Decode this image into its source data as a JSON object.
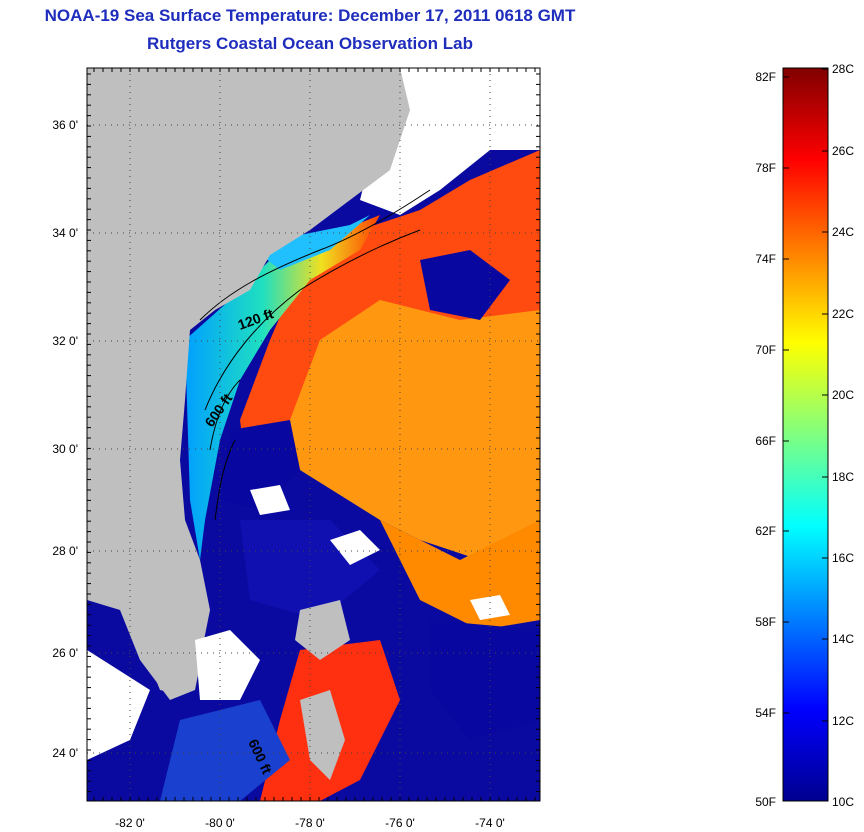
{
  "header": {
    "title": "NOAA-19 Sea Surface Temperature:  December 17, 2011 0618 GMT",
    "subtitle": "Rutgers Coastal Ocean Observation Lab"
  },
  "map": {
    "lat_labels": [
      "36 0'",
      "34 0'",
      "32 0'",
      "30 0'",
      "28 0'",
      "26 0'",
      "24 0'"
    ],
    "lon_labels": [
      "-82 0'",
      "-80 0'",
      "-78 0'",
      "-76 0'",
      "-74 0'"
    ],
    "isobath_labels": [
      "120 ft",
      "600 ft",
      "600 ft"
    ],
    "colors": {
      "land": "#bfbfbf",
      "cloud": "#ffffff",
      "cold": "#00008f",
      "warm": "#ff8c00"
    }
  },
  "colorbar": {
    "fahrenheit_labels": [
      "82F",
      "78F",
      "74F",
      "70F",
      "66F",
      "62F",
      "58F",
      "54F",
      "50F"
    ],
    "celsius_labels": [
      "28C",
      "26C",
      "24C",
      "22C",
      "20C",
      "18C",
      "16C",
      "14C",
      "12C",
      "10C"
    ],
    "range_c": [
      10,
      28
    ],
    "range_f": [
      50,
      82.4
    ],
    "colormap": "jet"
  }
}
